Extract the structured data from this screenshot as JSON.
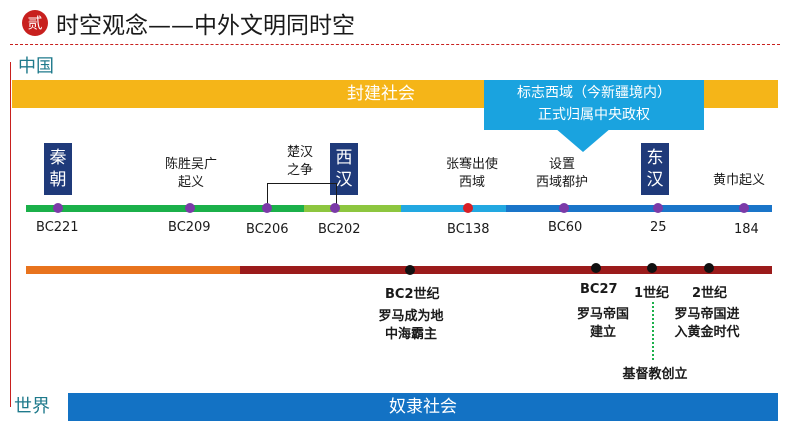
{
  "header": {
    "badge": "贰",
    "title": "时空观念——中外文明同时空"
  },
  "left_labels": {
    "china": "中国",
    "world": "世界"
  },
  "bands": {
    "top": "封建社会",
    "bottom": "奴隶社会"
  },
  "callout": {
    "line1": "标志西域（今新疆境内）",
    "line2": "正式归属中央政权"
  },
  "dynasties": {
    "qin": "秦朝",
    "west_han": "西汉",
    "east_han": "东汉"
  },
  "china_events": {
    "chen_sheng": [
      "陈胜吴广",
      "起义"
    ],
    "chu_han": [
      "楚汉",
      "之争"
    ],
    "zhang_qian": [
      "张骞出使",
      "西域"
    ],
    "protectorate": [
      "设置",
      "西域都护"
    ],
    "yellow_turban": [
      "黄巾起义"
    ]
  },
  "china_ticks": [
    "BC221",
    "BC209",
    "BC206",
    "BC202",
    "BC138",
    "BC60",
    "25",
    "184"
  ],
  "world_ticks": [
    "BC2世纪",
    "BC27",
    "1世纪",
    "2世纪"
  ],
  "world_events": {
    "rome_med": [
      "罗马成为地",
      "中海霸主"
    ],
    "rome_empire": [
      "罗马帝国",
      "建立"
    ],
    "rome_gold": [
      "罗马帝国进",
      "入黄金时代"
    ],
    "christianity": [
      "基督教创立"
    ]
  },
  "colors": {
    "accent_red": "#c8201e",
    "band_orange": "#f5b518",
    "band_blue": "#1372c4",
    "callout_blue": "#1aa3df",
    "dynasty_navy": "#1f3a7a",
    "qin_green": "#1bb04a",
    "transition_lightgreen": "#8dc63f",
    "han_cyan": "#22a8e1",
    "han_blue": "#1a75c9",
    "world_orange": "#e8731d",
    "world_darkred": "#9b1b1b",
    "dot_purple": "#7b3aa8",
    "dot_red": "#d81f26",
    "dot_black": "#111111"
  }
}
